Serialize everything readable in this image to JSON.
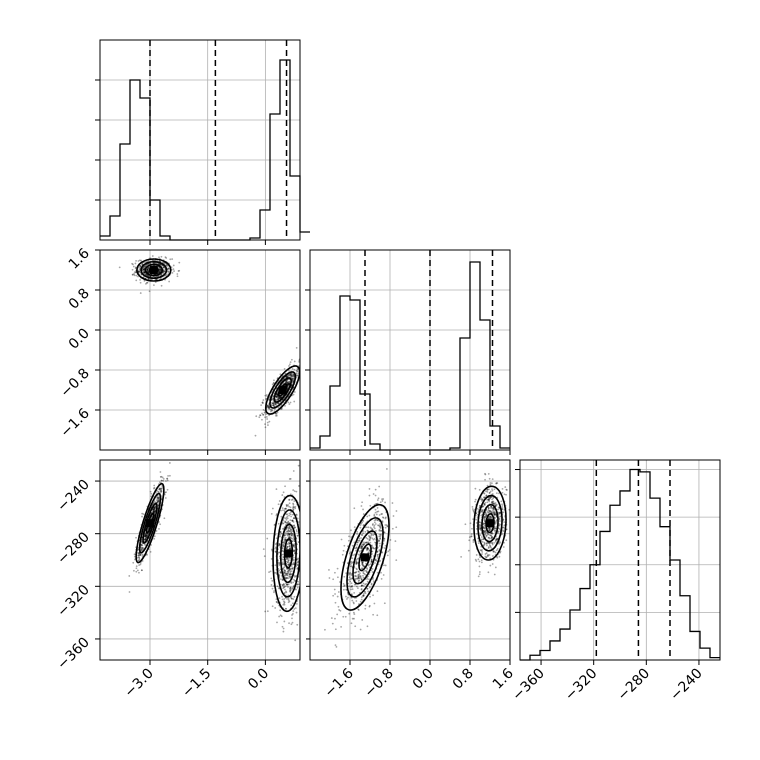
{
  "chart_data": {
    "type": "corner",
    "title": "",
    "params": [
      {
        "xlim": [
          -4.3,
          0.9
        ],
        "ticks": [
          -3.0,
          -1.5,
          0.0
        ],
        "tick_labels": [
          "−3.0",
          "−1.5",
          "0.0"
        ]
      },
      {
        "xlim": [
          -2.4,
          1.6
        ],
        "ticks": [
          -1.6,
          -0.8,
          0.0,
          0.8,
          1.6
        ],
        "tick_labels": [
          "−1.6",
          "−0.8",
          "0.0",
          "0.8",
          "1.6"
        ]
      },
      {
        "xlim": [
          -376,
          -224
        ],
        "ticks": [
          -360,
          -320,
          -280,
          -240
        ],
        "tick_labels": [
          "−360",
          "−320",
          "−280",
          "−240"
        ]
      }
    ],
    "y_tick_labels": {
      "p1": {
        "ticks": [
          1.6,
          0.8,
          0.0,
          -0.8,
          -1.6
        ],
        "labels": [
          "1.6",
          "0.8",
          "0.0",
          "−0.8",
          "−1.6"
        ]
      },
      "p2": {
        "ticks": [
          -240,
          -280,
          -320,
          -360
        ],
        "labels": [
          "−240",
          "−280",
          "−320",
          "−360"
        ]
      }
    },
    "histograms": [
      {
        "edges_start": -4.3,
        "bin_width": 0.26,
        "counts": [
          2,
          12,
          48,
          80,
          71,
          20,
          2,
          0,
          0,
          0,
          0,
          0,
          0,
          0,
          0,
          1,
          15,
          63,
          90,
          32,
          4
        ],
        "ymax": 100,
        "quantiles": [
          -3.0,
          -1.3,
          0.55
        ]
      },
      {
        "edges_start": -2.4,
        "bin_width": 0.2,
        "counts": [
          1,
          7,
          32,
          77,
          75,
          28,
          3,
          0,
          0,
          0,
          0,
          0,
          0,
          0,
          1,
          56,
          94,
          65,
          12,
          1
        ],
        "ymax": 100,
        "quantiles": [
          -1.3,
          0.0,
          1.25
        ]
      },
      {
        "edges_start": -376,
        "bin_width": 7.6,
        "counts": [
          0,
          2,
          4,
          8,
          13,
          21,
          30,
          40,
          54,
          65,
          71,
          80,
          79,
          68,
          56,
          42,
          27,
          12,
          5,
          1
        ],
        "ymax": 84,
        "quantiles": [
          -318,
          -286,
          -262
        ]
      }
    ],
    "scatter_clusters": {
      "p1_vs_p0": [
        {
          "x": -2.9,
          "y": 1.2,
          "sx": 0.22,
          "sy": 0.11,
          "rho": 0.0,
          "n": 650
        },
        {
          "x": 0.45,
          "y": -1.2,
          "sx": 0.22,
          "sy": 0.24,
          "rho": 0.75,
          "n": 700
        }
      ],
      "p2_vs_p0": [
        {
          "x": -3.0,
          "y": -272,
          "sx": 0.18,
          "sy": 15,
          "rho": 0.85,
          "n": 650
        },
        {
          "x": 0.6,
          "y": -295,
          "sx": 0.2,
          "sy": 22,
          "rho": 0.1,
          "n": 800
        }
      ],
      "p2_vs_p1": [
        {
          "x": -1.3,
          "y": -298,
          "sx": 0.24,
          "sy": 20,
          "rho": 0.6,
          "n": 700
        },
        {
          "x": 1.2,
          "y": -272,
          "sx": 0.16,
          "sy": 14,
          "rho": 0.1,
          "n": 650
        }
      ]
    }
  }
}
